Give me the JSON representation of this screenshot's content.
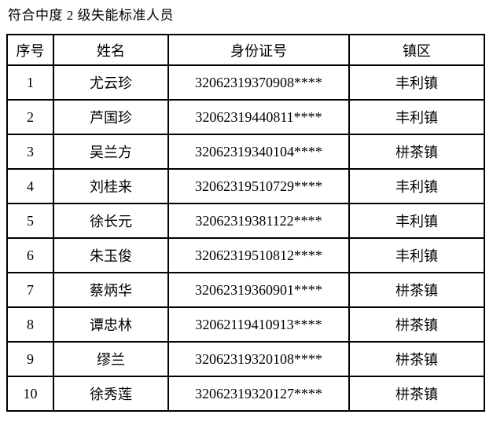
{
  "page": {
    "title": "符合中度 2 级失能标准人员",
    "background_color": "#ffffff",
    "text_color": "#000000",
    "border_color": "#000000"
  },
  "table": {
    "headers": [
      "序号",
      "姓名",
      "身份证号",
      "镇区"
    ],
    "rows": [
      [
        "1",
        "尤云珍",
        "32062319370908****",
        "丰利镇"
      ],
      [
        "2",
        "芦国珍",
        "32062319440811****",
        "丰利镇"
      ],
      [
        "3",
        "吴兰方",
        "32062319340104****",
        "栟茶镇"
      ],
      [
        "4",
        "刘桂来",
        "32062319510729****",
        "丰利镇"
      ],
      [
        "5",
        "徐长元",
        "32062319381122****",
        "丰利镇"
      ],
      [
        "6",
        "朱玉俊",
        "32062319510812****",
        "丰利镇"
      ],
      [
        "7",
        "蔡炳华",
        "32062319360901****",
        "栟茶镇"
      ],
      [
        "8",
        "谭忠林",
        "32062119410913****",
        "栟茶镇"
      ],
      [
        "9",
        "缪兰",
        "32062319320108****",
        "栟茶镇"
      ],
      [
        "10",
        "徐秀莲",
        "32062319320127****",
        "栟茶镇"
      ]
    ]
  }
}
